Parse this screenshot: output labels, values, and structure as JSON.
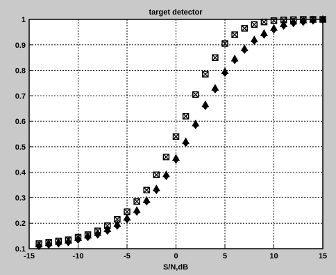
{
  "chart_data": {
    "type": "scatter",
    "title": "target detector",
    "xlabel": "S/N,dB",
    "ylabel": "",
    "xlim": [
      -15,
      15
    ],
    "ylim": [
      0.1,
      1.0
    ],
    "xticks": [
      -15,
      -10,
      -5,
      0,
      5,
      10,
      15
    ],
    "yticks": [
      0.1,
      0.2,
      0.3,
      0.4,
      0.5,
      0.6,
      0.7,
      0.8,
      0.9,
      1
    ],
    "ytick_labels": [
      "0.1",
      "0.2",
      "0.3",
      "0.4",
      "0.5",
      "0.6",
      "0.7",
      "0.8",
      "0.9",
      "1"
    ],
    "grid": true,
    "series": [
      {
        "marker": "square",
        "x": [
          -14,
          -13,
          -12,
          -11,
          -10,
          -9,
          -8,
          -7,
          -6,
          -5,
          -4,
          -3,
          -2,
          -1,
          0,
          1,
          2,
          3,
          4,
          5,
          6,
          7,
          8,
          9,
          10,
          11,
          12,
          13,
          14,
          15
        ],
        "y": [
          0.12,
          0.125,
          0.13,
          0.135,
          0.145,
          0.155,
          0.17,
          0.19,
          0.215,
          0.245,
          0.285,
          0.33,
          0.39,
          0.46,
          0.54,
          0.62,
          0.705,
          0.785,
          0.85,
          0.905,
          0.94,
          0.965,
          0.98,
          0.99,
          0.995,
          0.998,
          0.999,
          1.0,
          1.0,
          1.0
        ]
      },
      {
        "marker": "x",
        "x": [
          -14,
          -13,
          -12,
          -11,
          -10,
          -9,
          -8,
          -7,
          -6,
          -5,
          -4,
          -3,
          -2,
          -1,
          0,
          1,
          2,
          3,
          4,
          5,
          6,
          7,
          8,
          9,
          10,
          11,
          12,
          13,
          14,
          15
        ],
        "y": [
          0.12,
          0.125,
          0.13,
          0.135,
          0.145,
          0.155,
          0.17,
          0.19,
          0.215,
          0.245,
          0.285,
          0.33,
          0.39,
          0.46,
          0.54,
          0.62,
          0.705,
          0.785,
          0.85,
          0.905,
          0.94,
          0.965,
          0.98,
          0.99,
          0.995,
          0.998,
          0.999,
          1.0,
          1.0,
          1.0
        ]
      },
      {
        "marker": "triangle",
        "x": [
          -14,
          -13,
          -12,
          -11,
          -10,
          -9,
          -8,
          -7,
          -6,
          -5,
          -4,
          -3,
          -2,
          -1,
          0,
          1,
          2,
          3,
          4,
          5,
          6,
          7,
          8,
          9,
          10,
          11,
          12,
          13,
          14,
          15
        ],
        "y": [
          0.115,
          0.12,
          0.125,
          0.13,
          0.14,
          0.15,
          0.16,
          0.175,
          0.195,
          0.22,
          0.25,
          0.29,
          0.335,
          0.39,
          0.455,
          0.52,
          0.59,
          0.665,
          0.73,
          0.795,
          0.845,
          0.885,
          0.92,
          0.945,
          0.965,
          0.98,
          0.99,
          0.995,
          0.998,
          1.0
        ]
      },
      {
        "marker": "diamond",
        "x": [
          -14,
          -13,
          -12,
          -11,
          -10,
          -9,
          -8,
          -7,
          -6,
          -5,
          -4,
          -3,
          -2,
          -1,
          0,
          1,
          2,
          3,
          4,
          5,
          6,
          7,
          8,
          9,
          10,
          11,
          12,
          13,
          14,
          15
        ],
        "y": [
          0.11,
          0.115,
          0.12,
          0.125,
          0.135,
          0.145,
          0.155,
          0.17,
          0.19,
          0.215,
          0.245,
          0.285,
          0.33,
          0.385,
          0.45,
          0.515,
          0.585,
          0.66,
          0.725,
          0.79,
          0.84,
          0.88,
          0.915,
          0.94,
          0.96,
          0.975,
          0.985,
          0.99,
          0.995,
          0.998
        ]
      },
      {
        "marker": "plus",
        "x": [
          -14,
          -13,
          -12,
          -11,
          -10,
          -9,
          -8,
          -7,
          -6,
          -5,
          -4,
          -3,
          -2,
          -1,
          0,
          1,
          2,
          3,
          4,
          5,
          6,
          7,
          8,
          9,
          10,
          11,
          12,
          13,
          14,
          15
        ],
        "y": [
          0.11,
          0.115,
          0.12,
          0.125,
          0.135,
          0.145,
          0.155,
          0.17,
          0.19,
          0.215,
          0.245,
          0.285,
          0.33,
          0.385,
          0.45,
          0.515,
          0.585,
          0.66,
          0.725,
          0.79,
          0.84,
          0.88,
          0.915,
          0.94,
          0.96,
          0.975,
          0.985,
          0.99,
          0.995,
          0.998
        ]
      }
    ]
  }
}
